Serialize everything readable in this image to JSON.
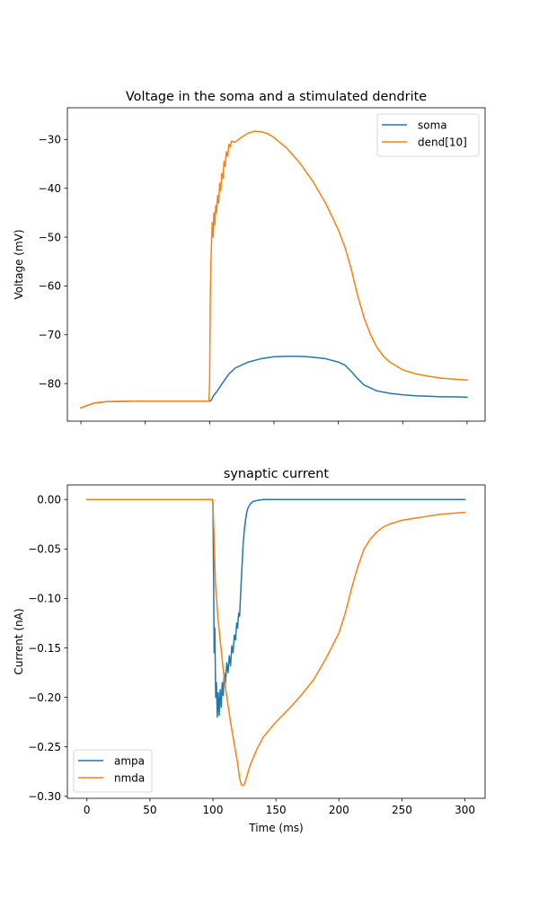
{
  "chart_data": [
    {
      "type": "line",
      "title": "Voltage in the soma and a stimulated dendrite",
      "xlabel": "",
      "ylabel": "Voltage (mV)",
      "xlim": [
        -10.5,
        314
      ],
      "ylim": [
        -87.7,
        -23.5
      ],
      "xticks": [
        0,
        50,
        100,
        150,
        200,
        250,
        300
      ],
      "xtick_labels_visible": false,
      "yticks": [
        -80,
        -70,
        -60,
        -50,
        -40,
        -30
      ],
      "ytick_labels": [
        "−80",
        "−70",
        "−60",
        "−50",
        "−40",
        "−30"
      ],
      "grid": false,
      "legend_position": "top-right",
      "series": [
        {
          "name": "soma",
          "color": "#1f77b4",
          "x": [
            0,
            5,
            10,
            20,
            40,
            60,
            80,
            99.5,
            100,
            101,
            103,
            106,
            110,
            115,
            120,
            130,
            140,
            150,
            160,
            170,
            180,
            190,
            200,
            205,
            210,
            215,
            220,
            230,
            240,
            250,
            260,
            270,
            280,
            290,
            300
          ],
          "y": [
            -85.0,
            -84.5,
            -84.0,
            -83.7,
            -83.6,
            -83.6,
            -83.6,
            -83.6,
            -83.6,
            -83.5,
            -82.5,
            -81.5,
            -79.9,
            -78.0,
            -76.8,
            -75.6,
            -74.9,
            -74.5,
            -74.4,
            -74.4,
            -74.6,
            -74.9,
            -75.6,
            -76.2,
            -77.5,
            -79.0,
            -80.3,
            -81.5,
            -82.0,
            -82.3,
            -82.5,
            -82.6,
            -82.7,
            -82.7,
            -82.8
          ]
        },
        {
          "name": "dend[10]",
          "color": "#ff7f0e",
          "x": [
            0,
            5,
            10,
            20,
            40,
            60,
            80,
            99.5,
            100,
            100.5,
            101,
            102,
            102.8,
            103.3,
            104,
            104.8,
            105.4,
            106.2,
            107,
            107.8,
            108.6,
            109.4,
            110.3,
            111.2,
            112,
            113,
            114,
            115,
            116,
            117,
            118,
            120,
            125,
            130,
            135,
            140,
            145,
            150,
            160,
            170,
            180,
            190,
            200,
            205,
            210,
            215,
            220,
            225,
            230,
            235,
            240,
            250,
            260,
            270,
            280,
            290,
            300
          ],
          "y": [
            -85.0,
            -84.5,
            -84.0,
            -83.7,
            -83.6,
            -83.6,
            -83.6,
            -83.6,
            -80.0,
            -63.0,
            -55.0,
            -47.0,
            -50.0,
            -45.0,
            -47.5,
            -43.5,
            -45.0,
            -41.5,
            -43.0,
            -39.0,
            -40.5,
            -37.0,
            -38.0,
            -34.5,
            -35.5,
            -32.5,
            -33.5,
            -31.0,
            -31.5,
            -30.3,
            -30.5,
            -30.5,
            -29.5,
            -28.7,
            -28.3,
            -28.4,
            -28.8,
            -29.6,
            -31.8,
            -34.8,
            -38.5,
            -43.0,
            -48.5,
            -52.0,
            -56.5,
            -62.0,
            -66.5,
            -70.0,
            -72.6,
            -74.4,
            -75.6,
            -77.2,
            -78.0,
            -78.5,
            -78.9,
            -79.1,
            -79.3
          ]
        }
      ]
    },
    {
      "type": "line",
      "title": "synaptic current",
      "xlabel": "Time (ms)",
      "ylabel": "Current (nA)",
      "xlim": [
        -15.5,
        316
      ],
      "ylim": [
        -0.302,
        0.0147
      ],
      "xticks": [
        0,
        50,
        100,
        150,
        200,
        250,
        300
      ],
      "xtick_labels": [
        "0",
        "50",
        "100",
        "150",
        "200",
        "250",
        "300"
      ],
      "yticks": [
        0.0,
        -0.05,
        -0.1,
        -0.15,
        -0.2,
        -0.25,
        -0.3
      ],
      "ytick_labels": [
        "0.00",
        "−0.05",
        "−0.10",
        "−0.15",
        "−0.20",
        "−0.25",
        "−0.30"
      ],
      "grid": false,
      "legend_position": "bottom-left",
      "series": [
        {
          "name": "ampa",
          "color": "#1f77b4",
          "x": [
            0,
            50,
            99.5,
            100,
            100.4,
            101,
            101.5,
            102.2,
            102.8,
            103.5,
            104.2,
            105,
            105.8,
            106.6,
            107.4,
            108.2,
            109,
            110,
            111,
            112,
            113,
            114,
            115,
            116,
            117,
            118,
            118.8,
            119.6,
            120.4,
            121.2,
            122,
            123,
            124,
            125,
            126,
            127,
            128,
            130,
            132,
            135,
            140,
            150,
            200,
            250,
            300
          ],
          "y": [
            0.0,
            0.0,
            0.0,
            -0.003,
            -0.06,
            -0.155,
            -0.13,
            -0.2,
            -0.185,
            -0.22,
            -0.195,
            -0.218,
            -0.192,
            -0.21,
            -0.185,
            -0.198,
            -0.175,
            -0.185,
            -0.165,
            -0.175,
            -0.158,
            -0.168,
            -0.148,
            -0.155,
            -0.137,
            -0.142,
            -0.125,
            -0.13,
            -0.115,
            -0.118,
            -0.095,
            -0.07,
            -0.045,
            -0.03,
            -0.02,
            -0.012,
            -0.008,
            -0.004,
            -0.002,
            -0.001,
            0.0,
            0.0,
            0.0,
            0.0,
            0.0
          ]
        },
        {
          "name": "nmda",
          "color": "#ff7f0e",
          "x": [
            0,
            50,
            99.5,
            100,
            101,
            102,
            104,
            106,
            108,
            110,
            112,
            114,
            116,
            118,
            119,
            120,
            121,
            122,
            123,
            124,
            125,
            126,
            128,
            130,
            135,
            140,
            150,
            160,
            170,
            180,
            190,
            200,
            205,
            210,
            215,
            220,
            225,
            230,
            235,
            240,
            250,
            260,
            270,
            280,
            290,
            300
          ],
          "y": [
            0.0,
            0.0,
            0.0,
            -0.003,
            -0.04,
            -0.085,
            -0.12,
            -0.145,
            -0.17,
            -0.19,
            -0.208,
            -0.225,
            -0.24,
            -0.255,
            -0.262,
            -0.27,
            -0.28,
            -0.286,
            -0.289,
            -0.289,
            -0.288,
            -0.284,
            -0.275,
            -0.267,
            -0.252,
            -0.24,
            -0.225,
            -0.212,
            -0.198,
            -0.182,
            -0.16,
            -0.135,
            -0.115,
            -0.09,
            -0.068,
            -0.05,
            -0.04,
            -0.033,
            -0.028,
            -0.025,
            -0.021,
            -0.019,
            -0.017,
            -0.015,
            -0.014,
            -0.013
          ]
        }
      ]
    }
  ]
}
